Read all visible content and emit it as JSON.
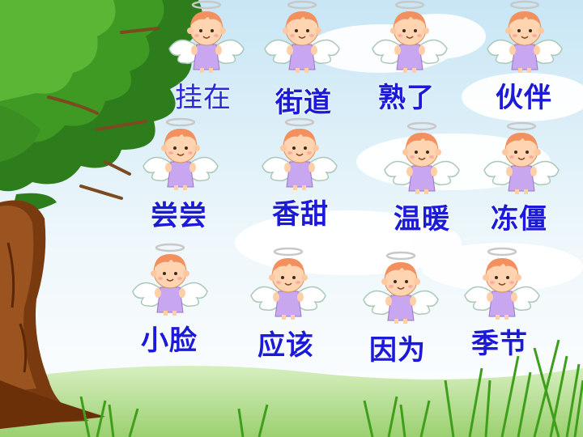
{
  "words": [
    {
      "text": "挂在"
    },
    {
      "text": "街道"
    },
    {
      "text": "熟了"
    },
    {
      "text": "伙伴"
    },
    {
      "text": "尝尝"
    },
    {
      "text": "香甜"
    },
    {
      "text": "温暖"
    },
    {
      "text": "冻僵"
    },
    {
      "text": "小脸"
    },
    {
      "text": "应该"
    },
    {
      "text": "因为"
    },
    {
      "text": "季节"
    }
  ],
  "colors": {
    "word": "#1a1ad8",
    "sky_top": "#cfe9f6",
    "cloud": "#ffffff",
    "tree_trunk": "#7a3a10",
    "foliage": "#2f8a1c",
    "grass": "#3f9e1a",
    "angel_dress": "#c9a6f0",
    "angel_skin": "#ffcfa8",
    "angel_hair": "#f29060"
  },
  "icons": [
    "angel-icon",
    "halo-icon",
    "wing-icon"
  ]
}
